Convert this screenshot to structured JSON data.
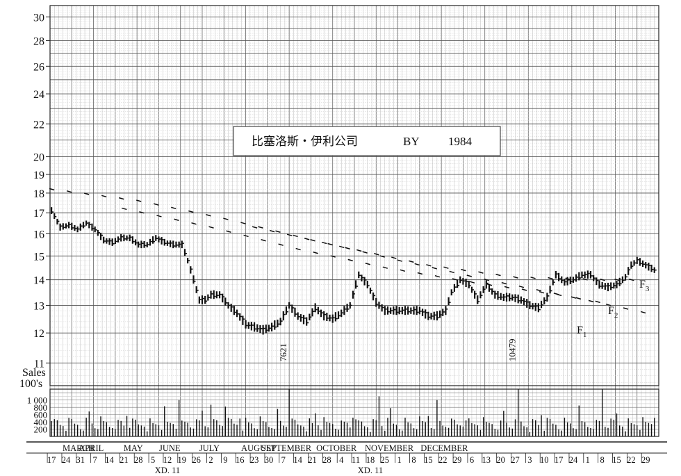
{
  "chart_data": {
    "type": "bar",
    "subtype": "daily high-low-close price bars with volume histogram",
    "title": "比塞洛斯・伊利公司",
    "title_symbol": "BY",
    "title_year": "1984",
    "price_axis": {
      "scale": "log",
      "ticks": [
        11,
        12,
        13,
        14,
        15,
        16,
        17,
        18,
        19,
        20,
        22,
        24,
        26,
        28,
        30
      ],
      "range": [
        10.3,
        31
      ]
    },
    "volume_axis": {
      "label_line1": "Sales",
      "label_line2": "100's",
      "ticks": [
        200,
        400,
        600,
        800,
        1000
      ],
      "tick_labels": [
        "200",
        "400",
        "600",
        "800",
        "1 000"
      ],
      "range": [
        0,
        1300
      ]
    },
    "months": [
      {
        "name": "MARCH",
        "x": 9.3
      },
      {
        "name": "APRIL",
        "x": 13.7
      },
      {
        "name": "MAY",
        "x": 28.2
      },
      {
        "name": "JUNE",
        "x": 40.8
      },
      {
        "name": "JULY",
        "x": 54.5
      },
      {
        "name": "AUGUST",
        "x": 71.5
      },
      {
        "name": "SEPTEMBER",
        "x": 81.0
      },
      {
        "name": "OCTOBER",
        "x": 98.3
      },
      {
        "name": "NOVEMBER",
        "x": 116.5
      },
      {
        "name": "DECEMBER",
        "x": 135.5
      }
    ],
    "weeks": [
      {
        "label": "17",
        "x": 0
      },
      {
        "label": "24",
        "x": 5
      },
      {
        "label": "31",
        "x": 10
      },
      {
        "label": "7",
        "x": 15
      },
      {
        "label": "14",
        "x": 20
      },
      {
        "label": "21",
        "x": 25
      },
      {
        "label": "28",
        "x": 30
      },
      {
        "label": "5",
        "x": 35
      },
      {
        "label": "12",
        "x": 40
      },
      {
        "label": "19",
        "x": 45
      },
      {
        "label": "26",
        "x": 50
      },
      {
        "label": "2",
        "x": 55
      },
      {
        "label": "9",
        "x": 60
      },
      {
        "label": "16",
        "x": 65
      },
      {
        "label": "23",
        "x": 70
      },
      {
        "label": "30",
        "x": 75
      },
      {
        "label": "7",
        "x": 80
      },
      {
        "label": "14",
        "x": 85
      },
      {
        "label": "21",
        "x": 90
      },
      {
        "label": "28",
        "x": 95
      },
      {
        "label": "4",
        "x": 100
      },
      {
        "label": "11",
        "x": 105
      },
      {
        "label": "18",
        "x": 110
      },
      {
        "label": "25",
        "x": 115
      },
      {
        "label": "1",
        "x": 120
      },
      {
        "label": "8",
        "x": 125
      },
      {
        "label": "15",
        "x": 130
      },
      {
        "label": "22",
        "x": 135
      },
      {
        "label": "29",
        "x": 140
      },
      {
        "label": "6",
        "x": 145
      },
      {
        "label": "13",
        "x": 150
      },
      {
        "label": "20",
        "x": 155
      },
      {
        "label": "27",
        "x": 160
      },
      {
        "label": "3",
        "x": 165
      },
      {
        "label": "10",
        "x": 170
      },
      {
        "label": "17",
        "x": 175
      },
      {
        "label": "24",
        "x": 180
      },
      {
        "label": "1",
        "x": 185
      },
      {
        "label": "8",
        "x": 190
      },
      {
        "label": "15",
        "x": 195
      },
      {
        "label": "22",
        "x": 200
      },
      {
        "label": "29",
        "x": 205
      }
    ],
    "dividend_marks": [
      {
        "label": "XD. 11",
        "x": 40
      },
      {
        "label": "XD. 11",
        "x": 110
      }
    ],
    "volume_annotations": [
      {
        "text": "7621",
        "x": 82
      },
      {
        "text": "10479",
        "x": 161
      }
    ],
    "price_series": {
      "name": "",
      "points": [
        [
          0,
          17.1
        ],
        [
          3,
          16.3
        ],
        [
          6,
          16.4
        ],
        [
          9,
          16.2
        ],
        [
          12,
          16.5
        ],
        [
          15,
          16.2
        ],
        [
          18,
          15.7
        ],
        [
          21,
          15.6
        ],
        [
          24,
          15.8
        ],
        [
          27,
          15.8
        ],
        [
          30,
          15.5
        ],
        [
          33,
          15.5
        ],
        [
          36,
          15.8
        ],
        [
          39,
          15.6
        ],
        [
          42,
          15.5
        ],
        [
          45,
          15.5
        ],
        [
          47,
          14.8
        ],
        [
          49,
          14.0
        ],
        [
          51,
          13.2
        ],
        [
          53,
          13.2
        ],
        [
          55,
          13.4
        ],
        [
          58,
          13.4
        ],
        [
          61,
          13.0
        ],
        [
          64,
          12.7
        ],
        [
          67,
          12.3
        ],
        [
          70,
          12.2
        ],
        [
          73,
          12.1
        ],
        [
          76,
          12.2
        ],
        [
          79,
          12.4
        ],
        [
          82,
          13.0
        ],
        [
          85,
          12.6
        ],
        [
          88,
          12.4
        ],
        [
          91,
          12.9
        ],
        [
          94,
          12.6
        ],
        [
          97,
          12.5
        ],
        [
          100,
          12.7
        ],
        [
          103,
          13.0
        ],
        [
          106,
          14.2
        ],
        [
          109,
          13.8
        ],
        [
          112,
          13.1
        ],
        [
          115,
          12.8
        ],
        [
          118,
          12.8
        ],
        [
          121,
          12.8
        ],
        [
          124,
          12.8
        ],
        [
          127,
          12.8
        ],
        [
          130,
          12.6
        ],
        [
          133,
          12.6
        ],
        [
          136,
          12.8
        ],
        [
          138,
          13.5
        ],
        [
          141,
          14.0
        ],
        [
          144,
          13.8
        ],
        [
          147,
          13.2
        ],
        [
          150,
          13.8
        ],
        [
          153,
          13.4
        ],
        [
          156,
          13.3
        ],
        [
          159,
          13.3
        ],
        [
          162,
          13.2
        ],
        [
          165,
          13.0
        ],
        [
          168,
          12.9
        ],
        [
          171,
          13.3
        ],
        [
          174,
          14.2
        ],
        [
          177,
          13.9
        ],
        [
          180,
          14.0
        ],
        [
          183,
          14.2
        ],
        [
          186,
          14.2
        ],
        [
          189,
          13.8
        ],
        [
          192,
          13.7
        ],
        [
          195,
          13.8
        ],
        [
          198,
          14.1
        ],
        [
          200,
          14.6
        ],
        [
          202,
          14.8
        ],
        [
          205,
          14.6
        ],
        [
          208,
          14.4
        ]
      ]
    },
    "reference_lines": [
      {
        "label": "F",
        "sub": "1",
        "points": [
          [
            0,
            18.2
          ],
          [
            30,
            17.6
          ],
          [
            60,
            16.7
          ],
          [
            90,
            15.7
          ],
          [
            120,
            14.8
          ],
          [
            150,
            14.0
          ],
          [
            180,
            13.3
          ],
          [
            210,
            12.6
          ]
        ]
      },
      {
        "label": "F",
        "sub": "2",
        "points": [
          [
            25,
            17.2
          ],
          [
            55,
            16.3
          ],
          [
            85,
            15.3
          ],
          [
            115,
            14.5
          ],
          [
            145,
            13.9
          ],
          [
            175,
            13.4
          ],
          [
            195,
            13.0
          ]
        ]
      },
      {
        "label": "F",
        "sub": "3",
        "points": [
          [
            70,
            16.3
          ],
          [
            100,
            15.4
          ],
          [
            130,
            14.6
          ],
          [
            160,
            14.1
          ],
          [
            190,
            14.0
          ],
          [
            205,
            14.0
          ]
        ]
      }
    ]
  }
}
